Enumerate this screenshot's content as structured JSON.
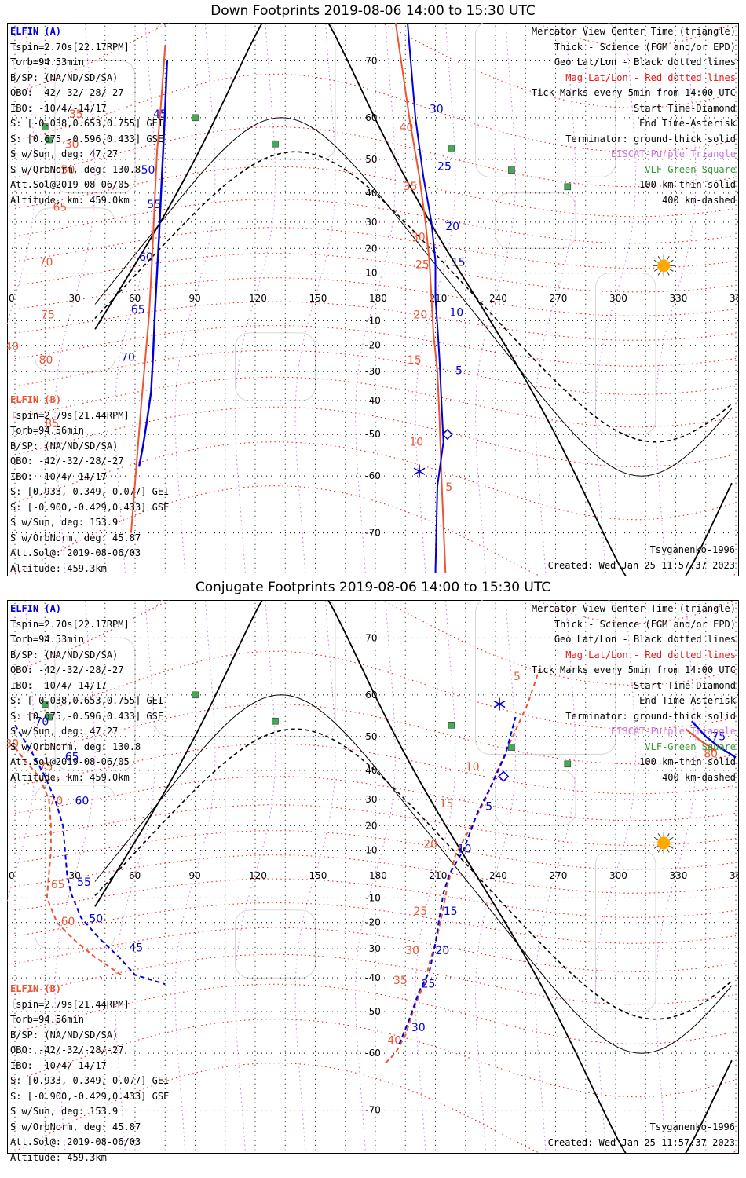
{
  "panels": [
    {
      "title": "Down Footprints 2019-08-06 14:00 to 15:30 UTC",
      "elfin_a": {
        "header": "ELFIN (A)",
        "lines": [
          "Tspin=2.70s[22.17RPM]",
          "Torb=94.53min",
          "B/SP: (NA/ND/SD/SA)",
          "OBO: -42/-32/-28/-27",
          "IBO: -10/4/-14/17",
          "S: [-0.038,0.653,0.755] GEI",
          "S: [0.675,-0.596,0.433] GSE",
          "S w/Sun, deg: 47.27",
          "S w/OrbNorm, deg: 130.8",
          "Att.Sol@2019-08-06/05",
          "Altitude, km: 459.0km"
        ]
      },
      "elfin_b": {
        "header": "ELFIN (B)",
        "lines": [
          "Tspin=2.79s[21.44RPM]",
          "Torb=94.56min",
          "B/SP: (NA/ND/SD/SA)",
          "OBO: -42/-32/-28/-27",
          "IBO: -10/4/-14/17",
          "S: [0.933,-0.349,-0.077] GEI",
          "S: [-0.900,-0.429,0.433] GSE",
          "S w/Sun, deg: 153.9",
          "S w/OrbNorm, deg: 45.87",
          "Att.Sol@: 2019-08-06/03",
          "Altitude: 459.3km"
        ]
      },
      "legend": [
        "Mercator View Center Time (triangle)",
        "Thick - Science (FGM and/or EPD)",
        "Geo Lat/Lon - Black dotted lines",
        "Mag Lat/Lon - Red dotted lines",
        "Tick Marks every 5min from 14:00 UTC",
        "Start Time-Diamond",
        "End Time-Asterisk",
        "Terminator: ground-thick solid",
        "EISCAT-Purple Triangle",
        "VLF-Green Square",
        "100 km-thin solid",
        "400 km-dashed"
      ],
      "model": "Tsyganenko-1996",
      "created": "Created: Wed Jan 25 11:57:37 2023",
      "track_a": {
        "points": [
          [
            62,
            -58
          ],
          [
            64,
            -53
          ],
          [
            66,
            -46
          ],
          [
            68,
            -37
          ],
          [
            69,
            -24
          ],
          [
            70,
            -5
          ],
          [
            71,
            10
          ],
          [
            72,
            25
          ],
          [
            73,
            40
          ],
          [
            74,
            52
          ],
          [
            75,
            62
          ],
          [
            76,
            70
          ]
        ],
        "labels": [
          [
            "40",
            74,
            76
          ],
          [
            "45",
            69,
            60
          ],
          [
            "50",
            63,
            46
          ],
          [
            "55",
            66,
            35
          ],
          [
            "60",
            62,
            15
          ],
          [
            "65",
            58,
            -7
          ],
          [
            "70",
            53,
            -26
          ]
        ]
      },
      "track_b": {
        "points": [
          [
            58,
            -70
          ],
          [
            61,
            -56
          ],
          [
            63,
            -42
          ],
          [
            65,
            -26
          ],
          [
            67,
            -8
          ],
          [
            68,
            8
          ],
          [
            69,
            24
          ],
          [
            70,
            40
          ],
          [
            71,
            52
          ],
          [
            73,
            63
          ],
          [
            75,
            72
          ]
        ],
        "labels": [
          [
            "35",
            27,
            60
          ],
          [
            "30",
            25,
            53
          ],
          [
            "40",
            -5,
            -22
          ],
          [
            "50",
            23,
            46
          ],
          [
            "65",
            19,
            34
          ],
          [
            "70",
            12,
            13
          ],
          [
            "75",
            13,
            -9
          ],
          [
            "80",
            12,
            -27
          ],
          [
            "85",
            15,
            -48
          ]
        ]
      },
      "track_a2": {
        "points": [
          [
            196,
            75
          ],
          [
            200,
            60
          ],
          [
            204,
            45
          ],
          [
            208,
            30
          ],
          [
            210,
            15
          ],
          [
            210,
            0
          ],
          [
            211,
            -12
          ],
          [
            212,
            -25
          ],
          [
            213,
            -40
          ],
          [
            214,
            -52
          ],
          [
            211,
            -62
          ],
          [
            210,
            -75
          ]
        ],
        "labels": [
          [
            "30",
            207,
            61
          ],
          [
            "25",
            211,
            47
          ],
          [
            "20",
            215,
            27
          ],
          [
            "15",
            218,
            13
          ],
          [
            "10",
            217,
            -8
          ],
          [
            "5",
            220,
            -31
          ]
        ]
      },
      "track_b2": {
        "points": [
          [
            190,
            75
          ],
          [
            197,
            60
          ],
          [
            202,
            45
          ],
          [
            205,
            30
          ],
          [
            207,
            15
          ],
          [
            208,
            0
          ],
          [
            209,
            -15
          ],
          [
            211,
            -30
          ],
          [
            212,
            -45
          ],
          [
            213,
            -60
          ],
          [
            215,
            -75
          ]
        ],
        "labels": [
          [
            "40",
            192,
            57
          ],
          [
            "35",
            194,
            41
          ],
          [
            "30",
            198,
            23
          ],
          [
            "25",
            200,
            12
          ],
          [
            "20",
            199,
            -9
          ],
          [
            "15",
            196,
            -27
          ],
          [
            "10",
            197,
            -53
          ],
          [
            "5",
            215,
            -63
          ]
        ]
      },
      "sun": [
        324,
        13
      ],
      "start_marker": [
        216,
        -50
      ],
      "end_marker": [
        202,
        -59
      ]
    },
    {
      "title": "Conjugate Footprints 2019-08-06 14:00 to 15:30 UTC",
      "elfin_a": {
        "header": "ELFIN (A)",
        "lines": [
          "Tspin=2.70s[22.17RPM]",
          "Torb=94.53min",
          "B/SP: (NA/ND/SD/SA)",
          "OBO: -42/-32/-28/-27",
          "IBO: -10/4/-14/17",
          "S: [-0.038,0.653,0.755] GEI",
          "S: [0.675,-0.596,0.433] GSE",
          "S w/Sun, deg: 47.27",
          "S w/OrbNorm, deg: 130.8",
          "Att.Sol@2019-08-06/05",
          "Altitude, km: 459.0km"
        ]
      },
      "elfin_b": {
        "header": "ELFIN (B)",
        "lines": [
          "Tspin=2.79s[21.44RPM]",
          "Torb=94.56min",
          "B/SP: (NA/ND/SD/SA)",
          "OBO: -42/-32/-28/-27",
          "IBO: -10/4/-14/17",
          "S: [0.933,-0.349,-0.077] GEI",
          "S: [-0.900,-0.429,0.433] GSE",
          "S w/Sun, deg: 153.9",
          "S w/OrbNorm, deg: 45.87",
          "Att.Sol@: 2019-08-06/03",
          "Altitude: 459.3km"
        ]
      },
      "legend": [
        "Mercator View Center Time (triangle)",
        "Thick - Science (FGM and/or EPD)",
        "Geo Lat/Lon - Black dotted lines",
        "Mag Lat/Lon - Red dotted lines",
        "Tick Marks every 5min from 14:00 UTC",
        "Start Time-Diamond",
        "End Time-Asterisk",
        "Terminator: ground-thick solid",
        "EISCAT-Purple Triangle",
        "VLF-Green Square",
        "100 km-thin solid",
        "400 km-dashed"
      ],
      "model": "Tsyganenko-1996",
      "created": "Created: Wed Jan 25 11:57:37 2023",
      "conj_a": {
        "points": [
          [
            0,
            53
          ],
          [
            8,
            46
          ],
          [
            15,
            38
          ],
          [
            20,
            30
          ],
          [
            24,
            20
          ],
          [
            25,
            10
          ],
          [
            26,
            0
          ],
          [
            28,
            -8
          ],
          [
            33,
            -18
          ],
          [
            42,
            -26
          ],
          [
            52,
            -33
          ],
          [
            60,
            -39
          ],
          [
            75,
            -42
          ]
        ],
        "labels": [
          [
            "70",
            10,
            53
          ],
          [
            "65",
            25,
            43
          ],
          [
            "60",
            30,
            28
          ],
          [
            "55",
            31,
            -5
          ],
          [
            "50",
            37,
            -20
          ],
          [
            "45",
            57,
            -31
          ]
        ]
      },
      "conj_b": {
        "points": [
          [
            0,
            47
          ],
          [
            5,
            43
          ],
          [
            12,
            38
          ],
          [
            17,
            30
          ],
          [
            18,
            20
          ],
          [
            18,
            10
          ],
          [
            17,
            0
          ],
          [
            16,
            -10
          ],
          [
            21,
            -20
          ],
          [
            30,
            -27
          ],
          [
            40,
            -33
          ],
          [
            53,
            -39
          ]
        ],
        "labels": [
          [
            "80",
            -5,
            47
          ],
          [
            "75",
            12,
            40
          ],
          [
            "70",
            17,
            28
          ],
          [
            "65",
            18,
            -6
          ],
          [
            "60",
            23,
            -21
          ]
        ]
      },
      "conj_a2": {
        "points": [
          [
            192,
            -58
          ],
          [
            197,
            -52
          ],
          [
            202,
            -44
          ],
          [
            207,
            -38
          ],
          [
            210,
            -28
          ],
          [
            212,
            -18
          ],
          [
            214,
            -8
          ],
          [
            217,
            0
          ],
          [
            224,
            10
          ],
          [
            231,
            25
          ],
          [
            238,
            35
          ],
          [
            245,
            45
          ],
          [
            250,
            55
          ]
        ],
        "labels": [
          [
            "30",
            198,
            -55
          ],
          [
            "25",
            203,
            -43
          ],
          [
            "20",
            210,
            -32
          ],
          [
            "15",
            214,
            -17
          ],
          [
            "10",
            221,
            9
          ],
          [
            "5",
            235,
            26
          ]
        ]
      },
      "conj_b2": {
        "points": [
          [
            185,
            -62
          ],
          [
            190,
            -60
          ],
          [
            195,
            -56
          ],
          [
            200,
            -48
          ],
          [
            205,
            -41
          ],
          [
            207,
            -35
          ],
          [
            210,
            -28
          ],
          [
            213,
            -18
          ],
          [
            216,
            -5
          ],
          [
            220,
            8
          ],
          [
            228,
            20
          ],
          [
            235,
            30
          ],
          [
            241,
            40
          ],
          [
            247,
            48
          ],
          [
            256,
            58
          ],
          [
            262,
            65
          ]
        ],
        "labels": [
          [
            "40",
            186,
            -58
          ],
          [
            "35",
            189,
            -42
          ],
          [
            "30",
            195,
            -32
          ],
          [
            "25",
            199,
            -17
          ],
          [
            "20",
            204,
            11
          ],
          [
            "15",
            212,
            27
          ],
          [
            "10",
            225,
            40
          ],
          [
            "5",
            249,
            63
          ]
        ]
      },
      "extra_a": {
        "points": [
          [
            338,
            54
          ],
          [
            345,
            50
          ],
          [
            352,
            47
          ],
          [
            360,
            44
          ]
        ],
        "labels": [
          [
            "75",
            348,
            49
          ]
        ]
      },
      "extra_b": {
        "points": [
          [
            335,
            52
          ],
          [
            342,
            49
          ],
          [
            350,
            46
          ]
        ],
        "labels": [
          [
            "80",
            344,
            44
          ]
        ]
      },
      "sun": [
        324,
        13
      ],
      "start_marker": [
        244,
        38
      ],
      "end_marker": [
        242,
        58
      ]
    }
  ],
  "axes": {
    "lon_ticks": [
      0,
      30,
      60,
      90,
      120,
      150,
      180,
      210,
      240,
      270,
      300,
      330,
      360
    ],
    "lat_ticks": [
      70,
      60,
      50,
      40,
      30,
      20,
      10,
      -10,
      -20,
      -30,
      -40,
      -50,
      -60,
      -70
    ]
  },
  "ground_stations": [
    [
      90,
      60
    ],
    [
      15,
      58
    ],
    [
      17,
      55
    ],
    [
      130,
      54
    ],
    [
      218,
      53
    ],
    [
      248,
      47
    ],
    [
      276,
      42
    ]
  ],
  "colors": {
    "elfin_a": "#0000dd",
    "elfin_b": "#ee5533",
    "mag_grid": "#ee1111",
    "terminator": "#000000",
    "eiscat": "#cc77dd",
    "vlf": "#44aa55",
    "sun": "#ffaa00"
  }
}
